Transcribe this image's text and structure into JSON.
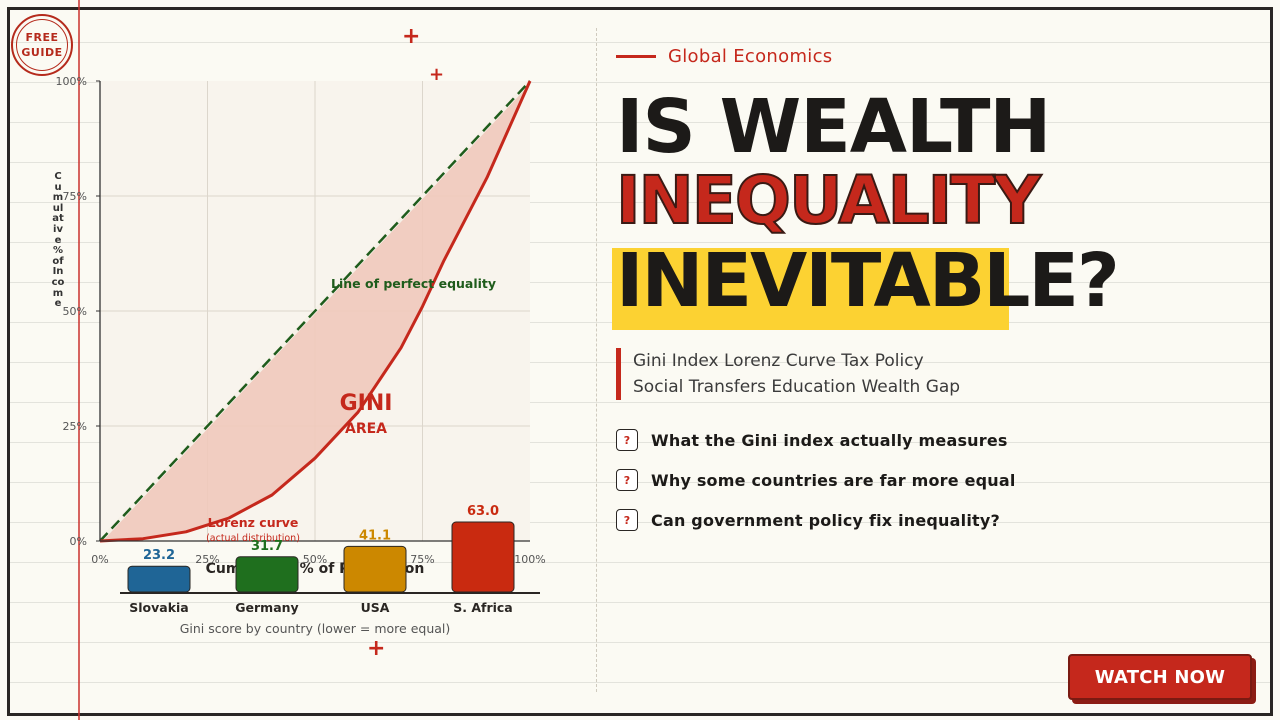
{
  "badge": {
    "line1": "FREE",
    "line2": "GUIDE"
  },
  "decor": {
    "plus_glyph": "+"
  },
  "kicker": "Global Economics",
  "title": {
    "line1": "IS WEALTH",
    "line2": "INEQUALITY",
    "line3": "INEVITABLE?"
  },
  "tags": {
    "row1": "Gini Index  Lorenz Curve  Tax Policy",
    "row2": "Social Transfers  Education  Wealth Gap"
  },
  "questions": [
    {
      "icon": "?",
      "text": "What the Gini index actually measures"
    },
    {
      "icon": "?",
      "text": "Why some countries are far more equal"
    },
    {
      "icon": "?",
      "text": "Can government policy fix inequality?"
    }
  ],
  "cta": {
    "label": "WATCH NOW"
  },
  "colors": {
    "accent": "#c5281c",
    "highlight": "#fcd232",
    "ink": "#1c1a18"
  },
  "chart_data": [
    {
      "type": "line",
      "xlabel": "Cumulative % of Population",
      "ylabel": "Cumulative % of Income",
      "xlim": [
        0,
        100
      ],
      "ylim": [
        0,
        100
      ],
      "x_ticks": [
        "0%",
        "25%",
        "50%",
        "75%",
        "100%"
      ],
      "y_ticks": [
        "0%",
        "25%",
        "50%",
        "75%",
        "100%"
      ],
      "grid": true,
      "series": [
        {
          "name": "Line of perfect equality",
          "x": [
            0,
            100
          ],
          "y": [
            0,
            100
          ],
          "style": "dashed",
          "color": "#1f5c1c"
        },
        {
          "name": "Lorenz curve",
          "x": [
            0,
            10,
            20,
            25,
            30,
            40,
            50,
            60,
            70,
            75,
            80,
            90,
            100
          ],
          "y": [
            0,
            0.5,
            2,
            3.5,
            5,
            10,
            18,
            28,
            42,
            51,
            61,
            79,
            100
          ],
          "color": "#c5281c"
        }
      ],
      "annotations": {
        "equality_label": "Line of perfect equality",
        "lorenz_label": "Lorenz curve",
        "lorenz_sub": "(actual distribution)",
        "gini_label": "GINI",
        "area_label": "AREA"
      }
    },
    {
      "type": "bar",
      "categories": [
        "Slovakia",
        "Germany",
        "USA",
        "S. Africa"
      ],
      "values": [
        23.2,
        31.7,
        41.1,
        63.0
      ],
      "value_labels": [
        "23.2",
        "31.7",
        "41.1",
        "63.0"
      ],
      "colors": [
        "#1f6596",
        "#1f6f1e",
        "#cc8800",
        "#c92a10"
      ],
      "xlabel": "Gini score by country  (lower = more equal)"
    }
  ]
}
